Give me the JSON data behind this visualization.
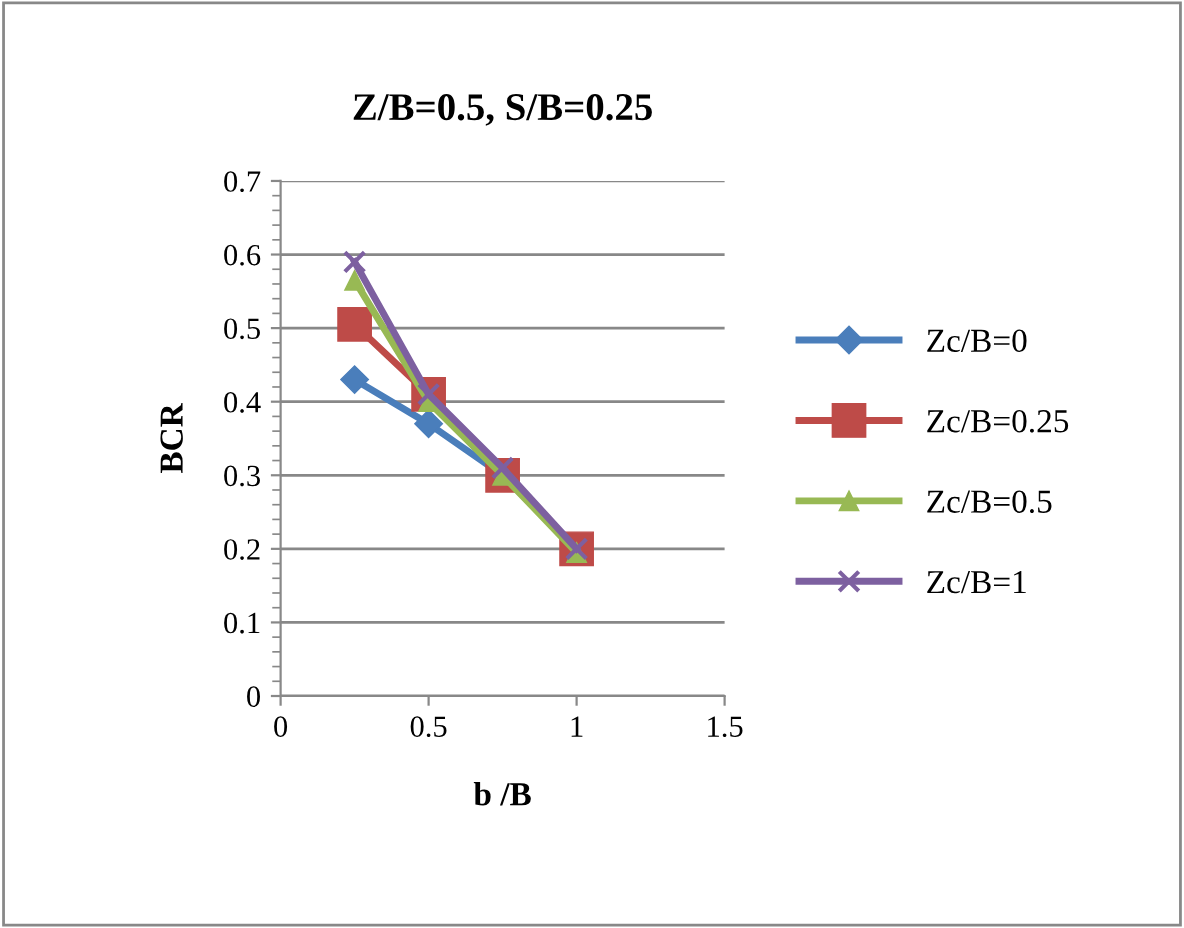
{
  "chart_data": {
    "type": "line",
    "title": "Z/B=0.5, S/B=0.25",
    "xlabel": "b /B",
    "ylabel": "BCR",
    "x": [
      0.25,
      0.5,
      0.75,
      1
    ],
    "series": [
      {
        "name": "Zc/B=0",
        "color": "#4a7ebb",
        "marker": "diamond",
        "values": [
          0.43,
          0.37,
          0.3,
          0.2
        ]
      },
      {
        "name": "Zc/B=0.25",
        "color": "#be4b48",
        "marker": "square",
        "values": [
          0.505,
          0.41,
          0.3,
          0.2
        ]
      },
      {
        "name": "Zc/B=0.5",
        "color": "#98b954",
        "marker": "triangle",
        "values": [
          0.565,
          0.4,
          0.3,
          0.195
        ]
      },
      {
        "name": "Zc/B=1",
        "color": "#7d60a0",
        "marker": "cross",
        "values": [
          0.59,
          0.41,
          0.31,
          0.2
        ]
      }
    ],
    "xlim": [
      0,
      1.5
    ],
    "xticks": [
      0,
      0.5,
      1,
      1.5
    ],
    "ylim": [
      0,
      0.7
    ],
    "yticks": [
      0,
      0.1,
      0.2,
      0.3,
      0.4,
      0.5,
      0.6,
      0.7
    ],
    "grid": "y",
    "legend": "right",
    "line_style": "solid"
  }
}
